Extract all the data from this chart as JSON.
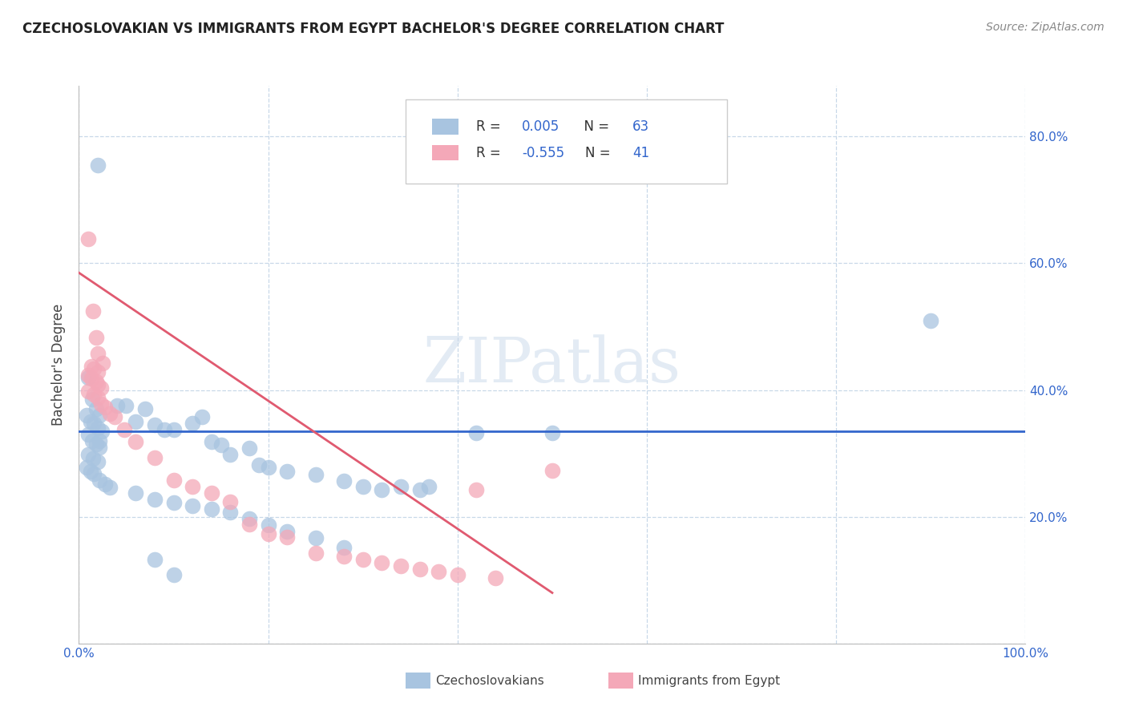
{
  "title": "CZECHOSLOVAKIAN VS IMMIGRANTS FROM EGYPT BACHELOR'S DEGREE CORRELATION CHART",
  "source": "Source: ZipAtlas.com",
  "ylabel": "Bachelor's Degree",
  "xlim": [
    0.0,
    1.0
  ],
  "ylim": [
    0.0,
    0.88
  ],
  "x_ticks": [
    0.0,
    0.2,
    0.4,
    0.6,
    0.8,
    1.0
  ],
  "x_tick_labels": [
    "0.0%",
    "",
    "",
    "",
    "",
    "100.0%"
  ],
  "y_ticks": [
    0.0,
    0.2,
    0.4,
    0.6,
    0.8
  ],
  "y_tick_labels": [
    "",
    "20.0%",
    "40.0%",
    "60.0%",
    "80.0%"
  ],
  "legend_line1": "R =  0.005   N = 63",
  "legend_line2": "R = -0.555   N = 41",
  "color_blue": "#a8c4e0",
  "color_pink": "#f4a8b8",
  "line_blue": "#3366cc",
  "line_pink": "#e05a70",
  "tick_color": "#3366cc",
  "watermark": "ZIPatlas",
  "blue_scatter": [
    [
      0.02,
      0.755
    ],
    [
      0.022,
      0.32
    ],
    [
      0.01,
      0.42
    ],
    [
      0.014,
      0.385
    ],
    [
      0.018,
      0.37
    ],
    [
      0.022,
      0.36
    ],
    [
      0.008,
      0.36
    ],
    [
      0.012,
      0.35
    ],
    [
      0.016,
      0.348
    ],
    [
      0.02,
      0.34
    ],
    [
      0.024,
      0.335
    ],
    [
      0.01,
      0.33
    ],
    [
      0.014,
      0.32
    ],
    [
      0.018,
      0.315
    ],
    [
      0.022,
      0.31
    ],
    [
      0.01,
      0.298
    ],
    [
      0.015,
      0.292
    ],
    [
      0.02,
      0.287
    ],
    [
      0.008,
      0.278
    ],
    [
      0.012,
      0.272
    ],
    [
      0.016,
      0.268
    ],
    [
      0.022,
      0.258
    ],
    [
      0.028,
      0.252
    ],
    [
      0.033,
      0.247
    ],
    [
      0.04,
      0.375
    ],
    [
      0.05,
      0.375
    ],
    [
      0.06,
      0.35
    ],
    [
      0.07,
      0.37
    ],
    [
      0.08,
      0.345
    ],
    [
      0.09,
      0.338
    ],
    [
      0.1,
      0.338
    ],
    [
      0.12,
      0.348
    ],
    [
      0.13,
      0.358
    ],
    [
      0.14,
      0.318
    ],
    [
      0.15,
      0.313
    ],
    [
      0.16,
      0.298
    ],
    [
      0.18,
      0.308
    ],
    [
      0.19,
      0.282
    ],
    [
      0.2,
      0.278
    ],
    [
      0.22,
      0.272
    ],
    [
      0.25,
      0.267
    ],
    [
      0.28,
      0.257
    ],
    [
      0.3,
      0.248
    ],
    [
      0.32,
      0.243
    ],
    [
      0.34,
      0.248
    ],
    [
      0.36,
      0.243
    ],
    [
      0.37,
      0.248
    ],
    [
      0.06,
      0.238
    ],
    [
      0.08,
      0.228
    ],
    [
      0.1,
      0.222
    ],
    [
      0.12,
      0.217
    ],
    [
      0.14,
      0.212
    ],
    [
      0.16,
      0.207
    ],
    [
      0.18,
      0.197
    ],
    [
      0.2,
      0.187
    ],
    [
      0.22,
      0.177
    ],
    [
      0.25,
      0.167
    ],
    [
      0.28,
      0.152
    ],
    [
      0.08,
      0.132
    ],
    [
      0.1,
      0.108
    ],
    [
      0.9,
      0.51
    ],
    [
      0.42,
      0.333
    ],
    [
      0.5,
      0.333
    ]
  ],
  "pink_scatter": [
    [
      0.01,
      0.638
    ],
    [
      0.015,
      0.525
    ],
    [
      0.018,
      0.483
    ],
    [
      0.02,
      0.458
    ],
    [
      0.025,
      0.443
    ],
    [
      0.013,
      0.438
    ],
    [
      0.016,
      0.433
    ],
    [
      0.02,
      0.428
    ],
    [
      0.01,
      0.423
    ],
    [
      0.013,
      0.418
    ],
    [
      0.018,
      0.413
    ],
    [
      0.02,
      0.408
    ],
    [
      0.023,
      0.403
    ],
    [
      0.01,
      0.398
    ],
    [
      0.016,
      0.393
    ],
    [
      0.02,
      0.388
    ],
    [
      0.023,
      0.378
    ],
    [
      0.028,
      0.373
    ],
    [
      0.033,
      0.363
    ],
    [
      0.038,
      0.358
    ],
    [
      0.048,
      0.338
    ],
    [
      0.06,
      0.318
    ],
    [
      0.08,
      0.293
    ],
    [
      0.1,
      0.258
    ],
    [
      0.12,
      0.248
    ],
    [
      0.14,
      0.238
    ],
    [
      0.16,
      0.223
    ],
    [
      0.18,
      0.188
    ],
    [
      0.2,
      0.173
    ],
    [
      0.22,
      0.168
    ],
    [
      0.25,
      0.143
    ],
    [
      0.28,
      0.138
    ],
    [
      0.3,
      0.133
    ],
    [
      0.32,
      0.128
    ],
    [
      0.34,
      0.123
    ],
    [
      0.36,
      0.118
    ],
    [
      0.38,
      0.113
    ],
    [
      0.4,
      0.108
    ],
    [
      0.42,
      0.243
    ],
    [
      0.44,
      0.103
    ],
    [
      0.5,
      0.273
    ]
  ],
  "blue_line_y": 0.335,
  "pink_line_x0": 0.0,
  "pink_line_y0": 0.585,
  "pink_line_x1": 0.5,
  "pink_line_y1": 0.08
}
